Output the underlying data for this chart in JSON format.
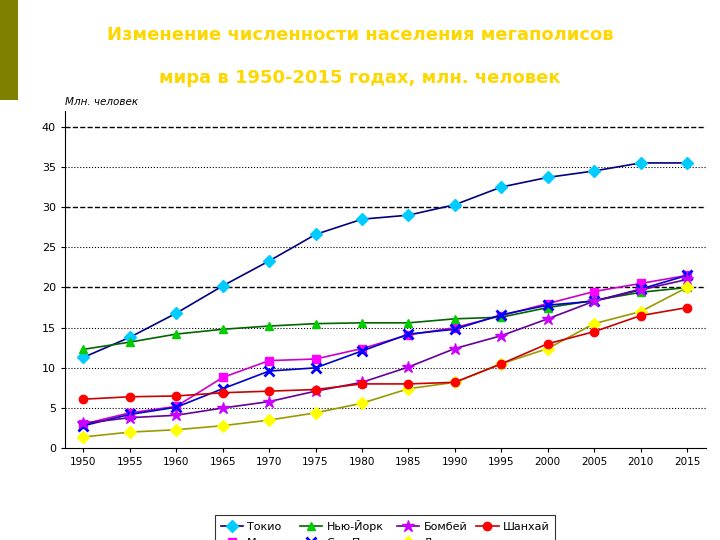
{
  "title_line1": "Изменение численности населения мегаполисов",
  "title_line2": "мира в 1950-2015 годах, млн. человек",
  "ylabel": "Млн. человек",
  "years": [
    1950,
    1955,
    1960,
    1965,
    1970,
    1975,
    1980,
    1985,
    1990,
    1995,
    2000,
    2005,
    2010,
    2015
  ],
  "series": {
    "Токио": [
      11.3,
      13.8,
      16.8,
      20.2,
      23.3,
      26.6,
      28.5,
      29.0,
      30.3,
      32.5,
      33.7,
      34.5,
      35.5,
      35.5
    ],
    "Мехико": [
      3.0,
      4.4,
      5.2,
      8.8,
      10.9,
      11.1,
      12.4,
      14.1,
      15.0,
      16.5,
      18.0,
      19.5,
      20.5,
      21.5
    ],
    "Нью-Йорк": [
      12.3,
      13.2,
      14.2,
      14.8,
      15.2,
      15.5,
      15.6,
      15.6,
      16.1,
      16.3,
      17.5,
      18.4,
      19.4,
      20.0
    ],
    "Сан-Паулу": [
      2.8,
      4.2,
      5.1,
      7.4,
      9.6,
      10.0,
      12.1,
      14.2,
      14.8,
      16.6,
      17.8,
      18.3,
      19.8,
      21.5
    ],
    "Бомбей": [
      3.1,
      3.8,
      4.1,
      5.0,
      5.8,
      7.1,
      8.2,
      10.1,
      12.4,
      14.0,
      16.1,
      18.3,
      19.7,
      21.0
    ],
    "Дели": [
      1.4,
      2.0,
      2.3,
      2.8,
      3.5,
      4.4,
      5.6,
      7.4,
      8.2,
      10.5,
      12.4,
      15.5,
      17.0,
      20.0
    ],
    "Шанхай": [
      6.1,
      6.4,
      6.5,
      6.9,
      7.1,
      7.3,
      8.0,
      8.0,
      8.2,
      10.5,
      13.0,
      14.5,
      16.5,
      17.5
    ]
  },
  "line_colors": {
    "Токио": "#000080",
    "Мехико": "#CC00CC",
    "Нью-Йорк": "#006600",
    "Сан-Паулу": "#0000CC",
    "Бомбей": "#660099",
    "Дели": "#999900",
    "Шанхай": "#CC0000"
  },
  "marker_colors": {
    "Токио": "#00CCFF",
    "Мехико": "#FF00FF",
    "Нью-Йорк": "#00CC00",
    "Сан-Паулу": "#0000FF",
    "Бомбей": "#CC00FF",
    "Дели": "#FFFF00",
    "Шанхай": "#FF0000"
  },
  "markers": {
    "Токио": "D",
    "Мехико": "s",
    "Нью-Йорк": "^",
    "Сан-Паулу": "x",
    "Бомбей": "*",
    "Дели": "D",
    "Шанхай": "o"
  },
  "title_bg_color": "#1E3A00",
  "title_text_color": "#FFD700",
  "title_left_strip": "#808000",
  "plot_bg_color": "#FFFFFF",
  "outer_bg_color": "#FFFFFF",
  "ylim": [
    0,
    42
  ],
  "yticks": [
    0,
    5,
    10,
    15,
    20,
    25,
    30,
    35,
    40
  ],
  "dotted_lines": [
    5,
    10,
    15,
    25,
    35
  ],
  "dashed_lines": [
    20,
    30,
    40
  ],
  "figsize": [
    7.2,
    5.4
  ],
  "dpi": 100
}
